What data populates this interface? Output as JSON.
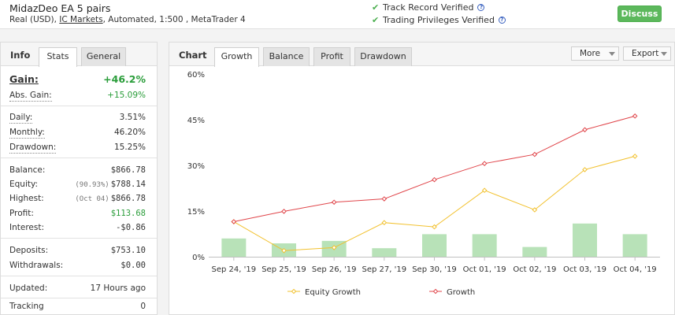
{
  "header": {
    "title": "MidazDeo EA 5 pairs",
    "subtitle_pre": "Real (USD), ",
    "broker": "IC Markets",
    "subtitle_post": ", Automated, 1:500 , MetaTrader 4",
    "track_record": "Track Record Verified",
    "trading_privileges": "Trading Privileges Verified",
    "discuss_label": "Discuss"
  },
  "info": {
    "heading": "Info",
    "tabs": [
      "Stats",
      "General"
    ],
    "gain_label": "Gain:",
    "gain_value": "+46.2%",
    "abs_gain_label": "Abs. Gain:",
    "abs_gain_value": "+15.09%",
    "daily_label": "Daily:",
    "daily_value": "3.51%",
    "monthly_label": "Monthly:",
    "monthly_value": "46.20%",
    "drawdown_label": "Drawdown:",
    "drawdown_value": "15.25%",
    "balance_label": "Balance:",
    "balance_value": "$866.78",
    "equity_label": "Equity:",
    "equity_note": "(90.93%)",
    "equity_value": "$788.14",
    "highest_label": "Highest:",
    "highest_note": "(Oct 04)",
    "highest_value": "$866.78",
    "profit_label": "Profit:",
    "profit_value": "$113.68",
    "interest_label": "Interest:",
    "interest_value": "-$0.86",
    "deposits_label": "Deposits:",
    "deposits_value": "$753.10",
    "withdrawals_label": "Withdrawals:",
    "withdrawals_value": "$0.00",
    "updated_label": "Updated:",
    "updated_value": "17 Hours ago",
    "tracking_label": "Tracking",
    "tracking_value": "0"
  },
  "chart_panel": {
    "heading": "Chart",
    "tabs": [
      "Growth",
      "Balance",
      "Profit",
      "Drawdown"
    ],
    "more_label": "More",
    "export_label": "Export"
  },
  "colors": {
    "growth": "#e0454a",
    "equity": "#f2c12e",
    "bars": "#b8e2b8",
    "accent_green": "#5cb85c"
  },
  "chart_data": {
    "type": "line",
    "categories": [
      "Sep 24, '19",
      "Sep 25, '19",
      "Sep 26, '19",
      "Sep 27, '19",
      "Sep 30, '19",
      "Oct 01, '19",
      "Oct 02, '19",
      "Oct 03, '19",
      "Oct 04, '19"
    ],
    "y_ticks": [
      "0%",
      "15%",
      "30%",
      "45%",
      "60%"
    ],
    "ylim": [
      0,
      60
    ],
    "series": [
      {
        "name": "Equity Growth",
        "type": "line",
        "values": [
          11.5,
          2.0,
          3.0,
          11.2,
          9.8,
          21.8,
          15.4,
          28.6,
          33.0
        ]
      },
      {
        "name": "Growth",
        "type": "line",
        "values": [
          11.5,
          14.9,
          17.9,
          19.0,
          25.3,
          30.6,
          33.6,
          41.7,
          46.2
        ]
      },
      {
        "type": "bar",
        "values": [
          6.0,
          4.4,
          5.2,
          2.8,
          7.4,
          7.4,
          3.2,
          10.9,
          7.4
        ]
      }
    ],
    "legend_position": "bottom",
    "grid": false
  }
}
